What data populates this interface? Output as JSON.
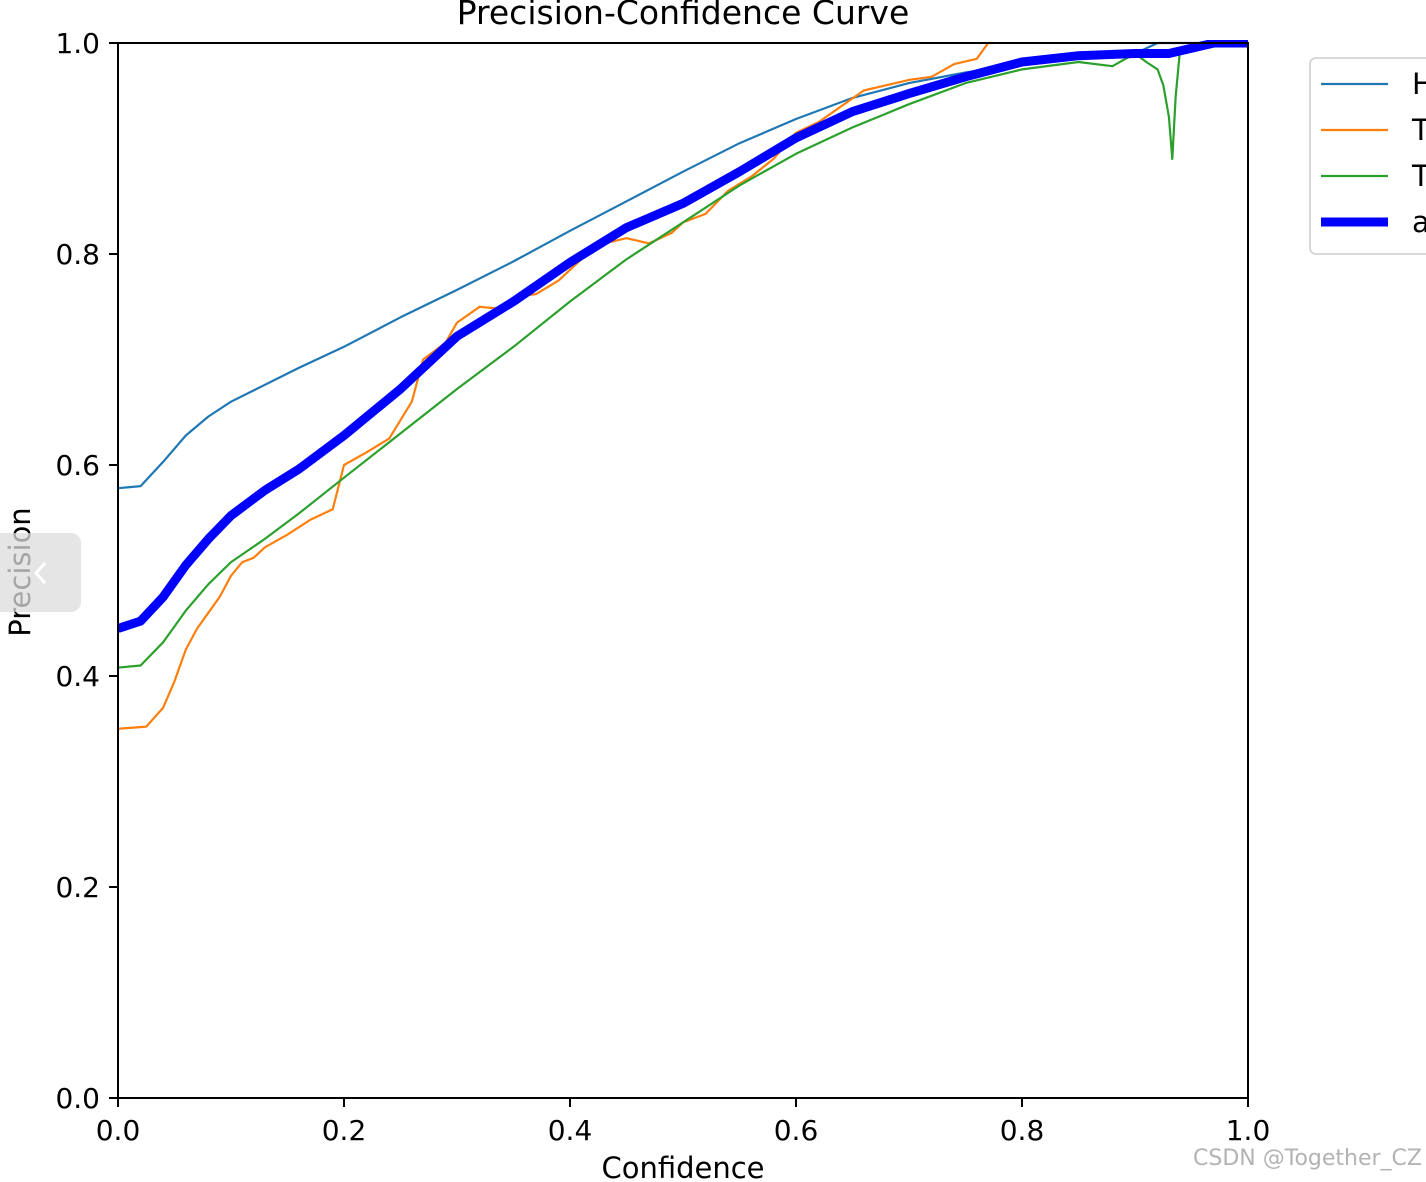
{
  "chart_data": {
    "type": "line",
    "title": "Precision-Confidence Curve",
    "xlabel": "Confidence",
    "ylabel": "Precision",
    "xlim": [
      0.0,
      1.0
    ],
    "ylim": [
      0.0,
      1.0
    ],
    "xticks": [
      "0.0",
      "0.2",
      "0.4",
      "0.6",
      "0.8",
      "1.0"
    ],
    "yticks": [
      "0.0",
      "0.2",
      "0.4",
      "0.6",
      "0.8",
      "1.0"
    ],
    "grid": false,
    "legend_position": "outside-right-top",
    "legend_entries": [
      "H",
      "T",
      "T",
      "a"
    ],
    "series": [
      {
        "name": "H",
        "color": "#1f77b4",
        "x": [
          0.0,
          0.02,
          0.04,
          0.06,
          0.08,
          0.1,
          0.13,
          0.16,
          0.2,
          0.25,
          0.3,
          0.35,
          0.4,
          0.45,
          0.5,
          0.55,
          0.6,
          0.65,
          0.7,
          0.75,
          0.8,
          0.85,
          0.9,
          0.92,
          0.95,
          1.0
        ],
        "y": [
          0.578,
          0.58,
          0.603,
          0.628,
          0.646,
          0.66,
          0.676,
          0.692,
          0.712,
          0.74,
          0.766,
          0.793,
          0.822,
          0.85,
          0.878,
          0.905,
          0.928,
          0.948,
          0.962,
          0.972,
          0.98,
          0.985,
          0.99,
          1.0,
          1.0,
          1.0
        ]
      },
      {
        "name": "T",
        "color": "#ff7f0e",
        "x": [
          0.0,
          0.025,
          0.04,
          0.05,
          0.06,
          0.07,
          0.08,
          0.09,
          0.1,
          0.11,
          0.12,
          0.13,
          0.15,
          0.17,
          0.19,
          0.2,
          0.22,
          0.24,
          0.26,
          0.27,
          0.29,
          0.3,
          0.32,
          0.34,
          0.355,
          0.37,
          0.39,
          0.41,
          0.43,
          0.45,
          0.47,
          0.49,
          0.5,
          0.52,
          0.54,
          0.56,
          0.58,
          0.6,
          0.62,
          0.64,
          0.66,
          0.68,
          0.7,
          0.72,
          0.74,
          0.76,
          0.77,
          0.775
        ],
        "y": [
          0.35,
          0.352,
          0.37,
          0.395,
          0.425,
          0.445,
          0.46,
          0.475,
          0.495,
          0.508,
          0.512,
          0.522,
          0.534,
          0.548,
          0.558,
          0.6,
          0.612,
          0.625,
          0.66,
          0.7,
          0.716,
          0.735,
          0.75,
          0.748,
          0.76,
          0.762,
          0.775,
          0.795,
          0.81,
          0.815,
          0.81,
          0.82,
          0.83,
          0.838,
          0.86,
          0.873,
          0.89,
          0.915,
          0.925,
          0.94,
          0.955,
          0.96,
          0.965,
          0.968,
          0.98,
          0.985,
          1.0,
          1.0
        ]
      },
      {
        "name": "T",
        "color": "#2ca02c",
        "x": [
          0.0,
          0.02,
          0.04,
          0.06,
          0.08,
          0.1,
          0.13,
          0.16,
          0.2,
          0.25,
          0.3,
          0.35,
          0.4,
          0.45,
          0.5,
          0.55,
          0.6,
          0.65,
          0.7,
          0.75,
          0.8,
          0.85,
          0.88,
          0.9,
          0.91,
          0.92,
          0.925,
          0.93,
          0.933,
          0.936,
          0.94,
          0.96,
          1.0
        ],
        "y": [
          0.408,
          0.41,
          0.432,
          0.462,
          0.487,
          0.508,
          0.53,
          0.554,
          0.588,
          0.63,
          0.672,
          0.712,
          0.755,
          0.795,
          0.83,
          0.865,
          0.895,
          0.92,
          0.942,
          0.962,
          0.975,
          0.982,
          0.978,
          0.99,
          0.982,
          0.975,
          0.96,
          0.93,
          0.89,
          0.95,
          0.995,
          1.0,
          1.0
        ]
      },
      {
        "name": "a",
        "color": "#0000ff",
        "x": [
          0.0,
          0.02,
          0.04,
          0.06,
          0.08,
          0.1,
          0.13,
          0.16,
          0.2,
          0.25,
          0.3,
          0.35,
          0.4,
          0.45,
          0.5,
          0.55,
          0.6,
          0.65,
          0.7,
          0.75,
          0.8,
          0.85,
          0.9,
          0.93,
          0.95,
          0.97,
          1.0
        ],
        "y": [
          0.445,
          0.452,
          0.475,
          0.505,
          0.53,
          0.552,
          0.576,
          0.596,
          0.628,
          0.672,
          0.722,
          0.755,
          0.792,
          0.825,
          0.848,
          0.878,
          0.91,
          0.935,
          0.952,
          0.968,
          0.982,
          0.988,
          0.99,
          0.99,
          0.995,
          1.0,
          1.0
        ]
      }
    ]
  },
  "watermark": "CSDN @Together_CZ",
  "icons": {
    "prev_arrow": "chevron-left-icon"
  }
}
